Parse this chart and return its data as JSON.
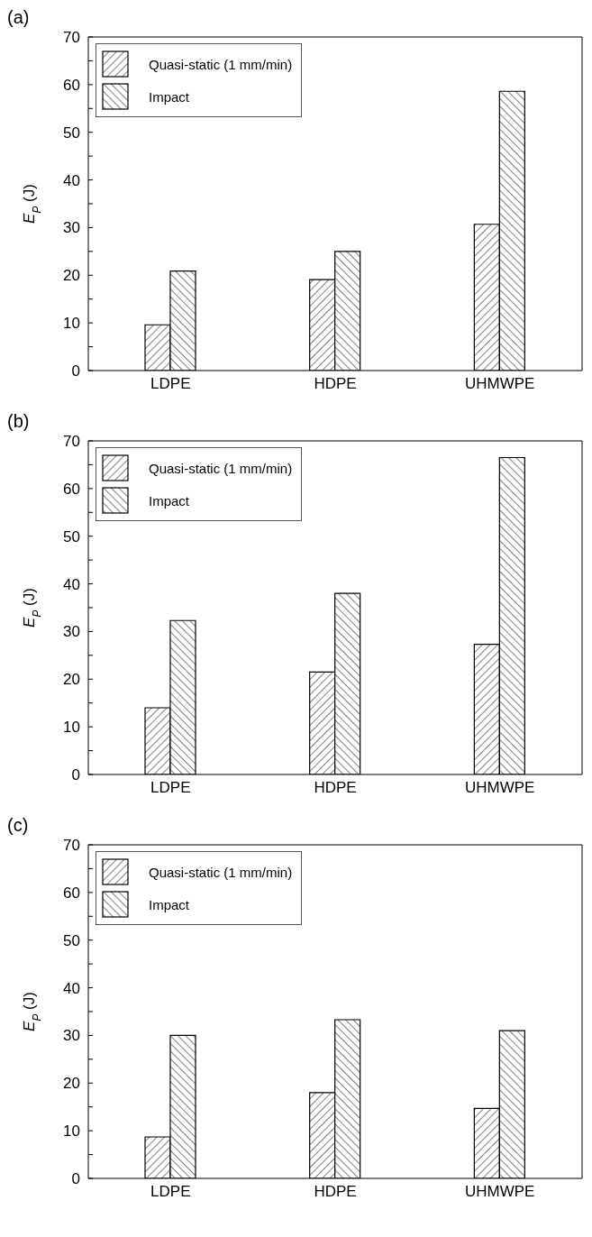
{
  "chart_data": [
    {
      "type": "bar",
      "title": "(a)",
      "ylabel": "E$_{P}$ (J)",
      "categories": [
        "LDPE",
        "HDPE",
        "UHMWPE"
      ],
      "series": [
        {
          "name": "Quasi-static (1 mm/min)",
          "color": "#000000",
          "values": [
            9.6,
            19.1,
            30.7
          ]
        },
        {
          "name": "Impact",
          "color": "#000000",
          "values": [
            20.9,
            25.0,
            58.6
          ]
        }
      ],
      "ylim": [
        0,
        70
      ],
      "yticks": [
        0,
        {
          "value": 5,
          "label": null
        },
        10,
        {
          "value": 15,
          "label": null
        },
        20,
        {
          "value": 25,
          "label": null
        },
        30,
        {
          "value": 35,
          "label": null
        },
        40,
        {
          "value": 45,
          "label": null
        },
        50,
        {
          "value": 55,
          "label": null
        },
        60,
        {
          "value": 65,
          "label": null
        },
        70
      ],
      "legend": "top left",
      "grid": false
    },
    {
      "type": "bar",
      "title": "(b)",
      "ylabel": "E$_{P}$ (J)",
      "categories": [
        "LDPE",
        "HDPE",
        "UHMWPE"
      ],
      "series": [
        {
          "name": "Quasi-static (1 mm/min)",
          "color": "#000000",
          "values": [
            14.0,
            21.5,
            27.3
          ]
        },
        {
          "name": "Impact",
          "color": "#000000",
          "values": [
            32.3,
            38.0,
            66.5
          ]
        }
      ],
      "ylim": [
        0,
        70
      ],
      "yticks": [
        0,
        {
          "value": 5,
          "label": null
        },
        10,
        {
          "value": 15,
          "label": null
        },
        20,
        {
          "value": 25,
          "label": null
        },
        30,
        {
          "value": 35,
          "label": null
        },
        40,
        {
          "value": 45,
          "label": null
        },
        50,
        {
          "value": 55,
          "label": null
        },
        60,
        {
          "value": 65,
          "label": null
        },
        70
      ],
      "legend": "top left",
      "grid": false
    },
    {
      "type": "bar",
      "title": "(c)",
      "ylabel": "E$_{P}$ (J)",
      "categories": [
        "LDPE",
        "HDPE",
        "UHMWPE"
      ],
      "series": [
        {
          "name": "Quasi-static (1 mm/min)",
          "color": "#000000",
          "values": [
            8.7,
            18.0,
            14.7
          ]
        },
        {
          "name": "Impact",
          "color": "#000000",
          "values": [
            30.0,
            33.3,
            31.0
          ]
        }
      ],
      "ylim": [
        0,
        70
      ],
      "yticks": [
        0,
        {
          "value": 5,
          "label": null
        },
        10,
        {
          "value": 15,
          "label": null
        },
        20,
        {
          "value": 25,
          "label": null
        },
        30,
        {
          "value": 35,
          "label": null
        },
        40,
        {
          "value": 45,
          "label": null
        },
        50,
        {
          "value": 55,
          "label": null
        },
        60,
        {
          "value": 65,
          "label": null
        },
        70
      ],
      "legend": "top left",
      "grid": false
    }
  ]
}
